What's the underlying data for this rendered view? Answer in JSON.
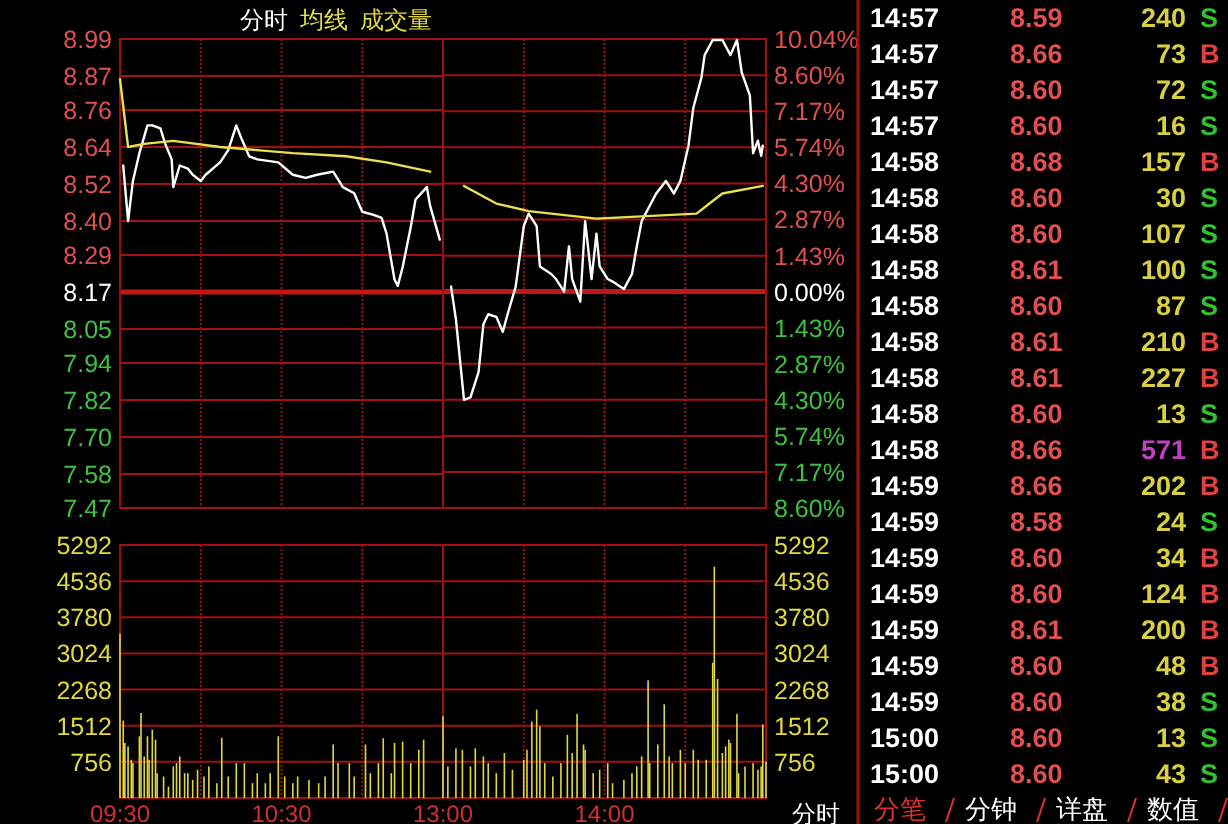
{
  "chart_data": [
    {
      "type": "line",
      "title": "分时",
      "grid": true,
      "tick_labels": "y",
      "xlim": [
        9.5,
        11.5
      ],
      "xticks": [
        {
          "value": 9.5,
          "label": null
        },
        {
          "value": 10,
          "label": null
        },
        {
          "value": 10.5,
          "label": null
        },
        {
          "value": 11,
          "label": null
        }
      ],
      "ylim": [
        7.47,
        8.99
      ],
      "yticks": [
        {
          "value": 8.99,
          "label": "8.99"
        },
        {
          "value": 8.87,
          "label": "8.87"
        },
        {
          "value": 8.76,
          "label": "8.76"
        },
        {
          "value": 8.64,
          "label": "8.64"
        },
        {
          "value": 8.52,
          "label": "8.52"
        },
        {
          "value": 8.4,
          "label": "8.40"
        },
        {
          "value": 8.29,
          "label": "8.29"
        },
        {
          "value": 8.17,
          "label": "8.17"
        },
        {
          "value": 8.05,
          "label": "8.05"
        },
        {
          "value": 7.94,
          "label": "7.94"
        },
        {
          "value": 7.82,
          "label": "7.82"
        },
        {
          "value": 7.7,
          "label": "7.70"
        },
        {
          "value": 7.58,
          "label": "7.58"
        },
        {
          "value": 7.47,
          "label": "7.47"
        }
      ],
      "ref_lines": [
        {
          "axis": "y",
          "value": 8.17
        }
      ],
      "series": [
        {
          "color": "#ffffff",
          "x": [
            9.52,
            9.55,
            9.58,
            9.62,
            9.67,
            9.7,
            9.75,
            9.78,
            9.82,
            9.83,
            9.87,
            9.92,
            9.95,
            10,
            10.03,
            10.12,
            10.17,
            10.22,
            10.25,
            10.3,
            10.35,
            10.48,
            10.57,
            10.65,
            10.72,
            10.82,
            10.88,
            10.95,
            11,
            11.07,
            11.12,
            11.15,
            11.2,
            11.22,
            11.25,
            11.3,
            11.33,
            11.4,
            11.42,
            11.48
          ],
          "values": [
            8.58,
            8.4,
            8.53,
            8.62,
            8.71,
            8.71,
            8.7,
            8.65,
            8.6,
            8.51,
            8.58,
            8.57,
            8.55,
            8.53,
            8.55,
            8.59,
            8.63,
            8.71,
            8.67,
            8.61,
            8.6,
            8.59,
            8.55,
            8.54,
            8.55,
            8.56,
            8.51,
            8.49,
            8.43,
            8.42,
            8.41,
            8.36,
            8.21,
            8.19,
            8.25,
            8.38,
            8.47,
            8.51,
            8.45,
            8.34
          ]
        },
        {
          "name": "均线",
          "color": "#e8e050",
          "x": [
            9.5,
            9.55,
            9.65,
            9.83,
            10.12,
            10.57,
            10.9,
            11.15,
            11.42
          ],
          "values": [
            8.86,
            8.64,
            8.65,
            8.66,
            8.64,
            8.62,
            8.61,
            8.59,
            8.56
          ]
        }
      ]
    },
    {
      "type": "line",
      "grid": true,
      "tick_labels": "y",
      "xlim": [
        13,
        15
      ],
      "xticks": [
        {
          "value": 13,
          "label": null
        },
        {
          "value": 13.5,
          "label": null
        },
        {
          "value": 14,
          "label": null
        },
        {
          "value": 14.5,
          "label": null
        }
      ],
      "ylim": [
        -8.6,
        10.04
      ],
      "yticks": [
        {
          "value": 10.04,
          "label": "10.04%"
        },
        {
          "value": 8.6,
          "label": "8.60%"
        },
        {
          "value": 7.17,
          "label": "7.17%"
        },
        {
          "value": 5.74,
          "label": "5.74%"
        },
        {
          "value": 4.3,
          "label": "4.30%"
        },
        {
          "value": 2.87,
          "label": "2.87%"
        },
        {
          "value": 1.43,
          "label": "1.43%"
        },
        {
          "value": 0,
          "label": "0.00%"
        },
        {
          "value": -1.43,
          "label": "1.43%"
        },
        {
          "value": -2.87,
          "label": "2.87%"
        },
        {
          "value": -4.3,
          "label": "4.30%"
        },
        {
          "value": -5.74,
          "label": "5.74%"
        },
        {
          "value": -7.17,
          "label": "7.17%"
        },
        {
          "value": -8.6,
          "label": "8.60%"
        }
      ],
      "ref_lines": [
        {
          "axis": "y",
          "value": 0
        }
      ],
      "series": [
        {
          "color": "#ffffff",
          "x": [
            13.05,
            13.08,
            13.13,
            13.17,
            13.22,
            13.25,
            13.28,
            13.33,
            13.37,
            13.4,
            13.45,
            13.5,
            13.53,
            13.58,
            13.6,
            13.67,
            13.7,
            13.75,
            13.78,
            13.8,
            13.85,
            13.88,
            13.92,
            13.95,
            13.97,
            14.02,
            14.05,
            14.12,
            14.17,
            14.2,
            14.23,
            14.32,
            14.38,
            14.43,
            14.47,
            14.52,
            14.55,
            14.6,
            14.62,
            14.67,
            14.73,
            14.78,
            14.82,
            14.85,
            14.9,
            14.92,
            14.95,
            14.97,
            14.98
          ],
          "values": [
            0.2,
            -1.1,
            -4.3,
            -4.2,
            -3.2,
            -1.3,
            -0.9,
            -1.0,
            -1.6,
            -0.9,
            0.2,
            2.6,
            3.1,
            2.6,
            1.0,
            0.7,
            0.5,
            0,
            1.8,
            0.5,
            -0.4,
            2.8,
            0.5,
            2.3,
            1.0,
            0.5,
            0.4,
            0.1,
            0.7,
            1.8,
            2.8,
            3.9,
            4.4,
            3.9,
            4.4,
            5.8,
            7.3,
            8.5,
            9.4,
            10.0,
            10.0,
            9.4,
            10.0,
            8.7,
            7.8,
            5.5,
            6.0,
            5.4,
            5.8
          ]
        },
        {
          "color": "#e8e050",
          "x": [
            13.13,
            13.33,
            13.53,
            13.95,
            14.57,
            14.65,
            14.73,
            14.98
          ],
          "values": [
            4.2,
            3.5,
            3.2,
            2.9,
            3.1,
            3.5,
            3.9,
            4.2
          ]
        }
      ]
    },
    {
      "type": "bar",
      "grid": true,
      "xlim": [
        9.5,
        11.5
      ],
      "xticks": [
        {
          "value": 9.5,
          "label": "09:30"
        },
        {
          "value": 10,
          "label": null
        },
        {
          "value": 10.5,
          "label": "10:30"
        },
        {
          "value": 11,
          "label": null
        }
      ],
      "ylim": [
        0,
        5292
      ],
      "yticks": [
        5292,
        4536,
        3780,
        3024,
        2268,
        1512,
        756
      ],
      "series": [
        {
          "name": "成交量",
          "color": "#e0d840",
          "x": [
            9.5,
            9.52,
            9.53,
            9.55,
            9.57,
            9.58,
            9.62,
            9.63,
            9.65,
            9.67,
            9.68,
            9.7,
            9.72,
            9.73,
            9.77,
            9.8,
            9.83,
            9.85,
            9.87,
            9.9,
            9.92,
            9.95,
            9.98,
            10.02,
            10.05,
            10.1,
            10.13,
            10.17,
            10.22,
            10.27,
            10.32,
            10.35,
            10.4,
            10.43,
            10.48,
            10.52,
            10.57,
            10.6,
            10.67,
            10.73,
            10.77,
            10.82,
            10.85,
            10.92,
            10.95,
            11.02,
            11.05,
            11.1,
            11.13,
            11.18,
            11.2,
            11.25,
            11.3,
            11.35,
            11.38
          ],
          "values": [
            3440,
            1620,
            1150,
            1080,
            800,
            730,
            1290,
            1780,
            870,
            1290,
            800,
            1430,
            1220,
            520,
            450,
            240,
            660,
            730,
            870,
            520,
            520,
            380,
            590,
            450,
            660,
            310,
            1260,
            450,
            730,
            730,
            310,
            520,
            310,
            520,
            1290,
            450,
            310,
            450,
            380,
            310,
            450,
            1120,
            730,
            730,
            450,
            1120,
            520,
            730,
            1250,
            520,
            1150,
            1180,
            730,
            1010,
            1220
          ]
        }
      ]
    },
    {
      "type": "bar",
      "grid": true,
      "xlabel": "分时",
      "xlim": [
        13,
        15
      ],
      "xticks": [
        {
          "value": 13,
          "label": "13:00"
        },
        {
          "value": 13.5,
          "label": null
        },
        {
          "value": 14,
          "label": "14:00"
        },
        {
          "value": 14.5,
          "label": null
        }
      ],
      "ylim": [
        0,
        5292
      ],
      "yticks": [
        5292,
        4536,
        3780,
        3024,
        2268,
        1512,
        756
      ],
      "series": [
        {
          "color": "#e0d840",
          "x": [
            13,
            13.03,
            13.08,
            13.12,
            13.17,
            13.2,
            13.25,
            13.28,
            13.33,
            13.38,
            13.43,
            13.5,
            13.52,
            13.55,
            13.58,
            13.6,
            13.63,
            13.68,
            13.73,
            13.77,
            13.8,
            13.83,
            13.87,
            13.88,
            13.93,
            13.97,
            14.02,
            14.05,
            14.12,
            14.17,
            14.2,
            14.23,
            14.27,
            14.28,
            14.33,
            14.37,
            14.4,
            14.42,
            14.47,
            14.5,
            14.55,
            14.58,
            14.63,
            14.67,
            14.68,
            14.7,
            14.73,
            14.75,
            14.77,
            14.78,
            14.82,
            14.83,
            14.87,
            14.92,
            14.95,
            14.97,
            14.98,
            15
          ],
          "values": [
            1710,
            660,
            1040,
            1010,
            660,
            1040,
            870,
            730,
            520,
            940,
            590,
            800,
            1010,
            1600,
            1850,
            1500,
            730,
            450,
            730,
            1320,
            940,
            1760,
            1120,
            1010,
            520,
            590,
            730,
            310,
            380,
            520,
            660,
            870,
            2460,
            730,
            1120,
            1960,
            870,
            730,
            1010,
            730,
            1010,
            800,
            800,
            2830,
            4840,
            2490,
            940,
            1080,
            1220,
            1150,
            1760,
            520,
            660,
            730,
            590,
            660,
            1540,
            760
          ]
        }
      ]
    },
    {
      "type": "other",
      "annotations": [
        "14:57",
        "8.59",
        "240",
        "S",
        "14:57",
        "8.66",
        "73",
        "B",
        "14:57",
        "8.60",
        "72",
        "S",
        "14:57",
        "8.60",
        "16",
        "S",
        "14:58",
        "8.68",
        "157",
        "B",
        "14:58",
        "8.60",
        "30",
        "S",
        "14:58",
        "8.60",
        "107",
        "S",
        "14:58",
        "8.61",
        "100",
        "S",
        "14:58",
        "8.60",
        "87",
        "S",
        "14:58",
        "8.61",
        "210",
        "B",
        "14:58",
        "8.61",
        "227",
        "B",
        "14:58",
        "8.60",
        "13",
        "S",
        "14:58",
        "8.66",
        "571",
        "B",
        "14:59",
        "8.66",
        "202",
        "B",
        "14:59",
        "8.58",
        "24",
        "S",
        "14:59",
        "8.60",
        "34",
        "B",
        "14:59",
        "8.60",
        "124",
        "B",
        "14:59",
        "8.61",
        "200",
        "B",
        "14:59",
        "8.60",
        "48",
        "B",
        "14:59",
        "8.60",
        "38",
        "S",
        "15:00",
        "8.60",
        "13",
        "S",
        "15:00",
        "8.60",
        "43",
        "S",
        "分笔",
        "分钟",
        "详盘",
        "数值"
      ],
      "colors": [
        "#ffffff",
        "#e05050",
        "#d8d040",
        "#30c030",
        "#ffffff",
        "#e05050",
        "#d8d040",
        "#e04040",
        "#ffffff",
        "#e05050",
        "#d8d040",
        "#30c030",
        "#ffffff",
        "#e05050",
        "#d8d040",
        "#30c030",
        "#ffffff",
        "#e05050",
        "#d8d040",
        "#e04040",
        "#ffffff",
        "#e05050",
        "#d8d040",
        "#30c030",
        "#ffffff",
        "#e05050",
        "#d8d040",
        "#30c030",
        "#ffffff",
        "#e05050",
        "#d8d040",
        "#30c030",
        "#ffffff",
        "#e05050",
        "#d8d040",
        "#30c030",
        "#ffffff",
        "#e05050",
        "#d8d040",
        "#e04040",
        "#ffffff",
        "#e05050",
        "#d8d040",
        "#e04040",
        "#ffffff",
        "#e05050",
        "#d8d040",
        "#30c030",
        "#ffffff",
        "#e05050",
        "#c040c0",
        "#e04040",
        "#ffffff",
        "#e05050",
        "#d8d040",
        "#e04040",
        "#ffffff",
        "#e05050",
        "#d8d040",
        "#30c030",
        "#ffffff",
        "#e05050",
        "#d8d040",
        "#e04040",
        "#ffffff",
        "#e05050",
        "#d8d040",
        "#e04040",
        "#ffffff",
        "#e05050",
        "#d8d040",
        "#e04040",
        "#ffffff",
        "#e05050",
        "#d8d040",
        "#e04040",
        "#ffffff",
        "#e05050",
        "#d8d040",
        "#30c030",
        "#ffffff",
        "#e05050",
        "#d8d040",
        "#30c030",
        "#ffffff",
        "#e05050",
        "#d8d040",
        "#30c030",
        "#e03030",
        "#ffffff",
        "#ffffff",
        "#ffffff"
      ]
    }
  ]
}
